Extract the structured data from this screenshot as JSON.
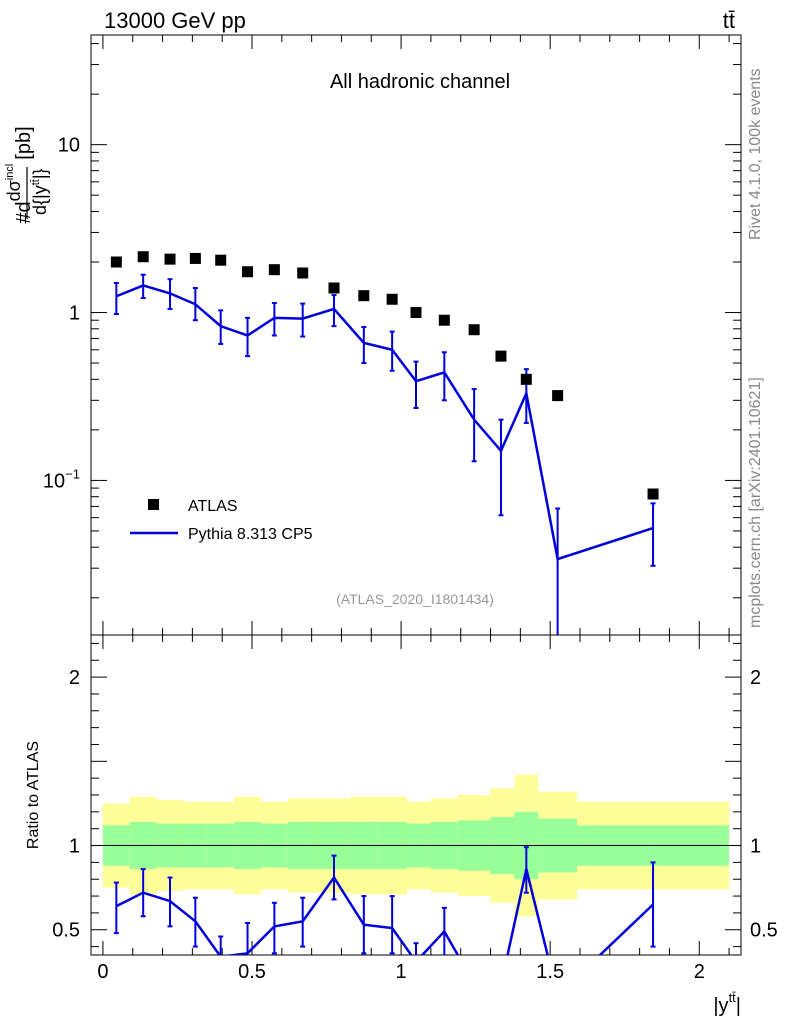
{
  "header": {
    "energy_label": "13000 GeV pp",
    "process_label": "tt̄"
  },
  "side_labels": {
    "rivet": "Rivet 4.1.0,  100k events",
    "source": "mcplots.cern.ch [arXiv:2401.10621]"
  },
  "colors": {
    "data": "#000000",
    "mc": "#0000dd",
    "band_inner": "#99ff99",
    "band_outer": "#ffff99"
  },
  "chart_data": [
    {
      "type": "scatter",
      "panel": "main",
      "title": "All hadronic channel",
      "ylabel": "#d dσ^{incl} / d{|y^{tt̄}|} [pb]",
      "ylabel_parts": {
        "prefix": "#d",
        "numerator": "dσ",
        "numerator_sup": "incl",
        "denominator": "d{|y",
        "denominator_sup": "tt̄",
        "denominator_tail": "|}",
        "unit": "[pb]"
      },
      "yscale": "log",
      "ylim": [
        0.012,
        45
      ],
      "xlim": [
        -0.04,
        2.14
      ],
      "y_ticks": [
        {
          "value": 0.1,
          "label_base": "10",
          "label_exp": "−1"
        },
        {
          "value": 1,
          "label_base": "1",
          "label_exp": ""
        },
        {
          "value": 10,
          "label_base": "10",
          "label_exp": ""
        }
      ],
      "watermark": "(ATLAS_2020_I1801434)",
      "legend": {
        "placement": "bottom-left",
        "entries": [
          {
            "label": "ATLAS",
            "marker": "square"
          },
          {
            "label": "Pythia 8.313 CP5",
            "marker": "line"
          }
        ]
      },
      "series": [
        {
          "name": "ATLAS",
          "style": "markers",
          "x": [
            0.045,
            0.135,
            0.225,
            0.31,
            0.395,
            0.485,
            0.575,
            0.67,
            0.775,
            0.875,
            0.97,
            1.05,
            1.145,
            1.245,
            1.335,
            1.42,
            1.525,
            1.845
          ],
          "y": [
            2.0,
            2.15,
            2.08,
            2.1,
            2.05,
            1.75,
            1.8,
            1.72,
            1.4,
            1.26,
            1.2,
            1.0,
            0.9,
            0.79,
            0.55,
            0.4,
            0.32,
            0.083
          ]
        },
        {
          "name": "Pythia 8.313 CP5",
          "style": "line",
          "x": [
            0.045,
            0.135,
            0.225,
            0.31,
            0.395,
            0.485,
            0.575,
            0.67,
            0.775,
            0.875,
            0.97,
            1.05,
            1.145,
            1.245,
            1.335,
            1.42,
            1.525,
            1.845
          ],
          "y": [
            1.25,
            1.45,
            1.3,
            1.12,
            0.83,
            0.73,
            0.93,
            0.92,
            1.05,
            0.66,
            0.6,
            0.39,
            0.44,
            0.23,
            0.15,
            0.33,
            0.034,
            0.052
          ],
          "y_low": [
            0.98,
            1.22,
            1.05,
            0.9,
            0.65,
            0.55,
            0.73,
            0.72,
            0.83,
            0.5,
            0.45,
            0.27,
            0.3,
            0.13,
            0.062,
            0.22,
            0.012,
            0.031
          ],
          "y_high": [
            1.5,
            1.68,
            1.58,
            1.4,
            1.03,
            0.93,
            1.14,
            1.13,
            1.27,
            0.82,
            0.77,
            0.51,
            0.58,
            0.35,
            0.23,
            0.46,
            0.068,
            0.073
          ]
        }
      ]
    },
    {
      "type": "line",
      "panel": "ratio",
      "ylabel": "Ratio to ATLAS",
      "xlabel": "|y^{tt̄}|",
      "xlabel_parts": {
        "base": "|y",
        "sup": "tt̄",
        "tail": "|"
      },
      "ylim": [
        0.35,
        2.25
      ],
      "xlim": [
        -0.04,
        2.14
      ],
      "x_ticks": [
        {
          "value": 0,
          "label": "0"
        },
        {
          "value": 0.5,
          "label": "0.5"
        },
        {
          "value": 1,
          "label": "1"
        },
        {
          "value": 1.5,
          "label": "1.5"
        },
        {
          "value": 2,
          "label": "2"
        }
      ],
      "y_ticks": [
        {
          "value": 0.5,
          "label": "0.5"
        },
        {
          "value": 1,
          "label": "1"
        },
        {
          "value": 2,
          "label": "2"
        }
      ],
      "reference_line": 1,
      "bands": {
        "edges": [
          0.0,
          0.09,
          0.18,
          0.27,
          0.35,
          0.44,
          0.53,
          0.62,
          0.72,
          0.83,
          0.92,
          1.02,
          1.1,
          1.19,
          1.3,
          1.38,
          1.46,
          1.59,
          2.1
        ],
        "inner_low": [
          0.88,
          0.86,
          0.87,
          0.87,
          0.87,
          0.86,
          0.87,
          0.86,
          0.86,
          0.86,
          0.86,
          0.87,
          0.86,
          0.85,
          0.83,
          0.8,
          0.84,
          0.88
        ],
        "inner_high": [
          1.12,
          1.14,
          1.13,
          1.13,
          1.13,
          1.14,
          1.13,
          1.14,
          1.14,
          1.14,
          1.14,
          1.13,
          1.14,
          1.15,
          1.17,
          1.2,
          1.16,
          1.12
        ],
        "outer_low": [
          0.75,
          0.71,
          0.73,
          0.74,
          0.74,
          0.71,
          0.74,
          0.72,
          0.72,
          0.71,
          0.71,
          0.74,
          0.72,
          0.7,
          0.66,
          0.58,
          0.68,
          0.74
        ],
        "outer_high": [
          1.25,
          1.29,
          1.27,
          1.26,
          1.26,
          1.29,
          1.26,
          1.28,
          1.28,
          1.29,
          1.29,
          1.26,
          1.28,
          1.3,
          1.34,
          1.42,
          1.32,
          1.26
        ]
      },
      "series": [
        {
          "name": "Pythia 8.313 CP5 / ATLAS",
          "x": [
            0.045,
            0.135,
            0.225,
            0.31,
            0.395,
            0.485,
            0.575,
            0.67,
            0.775,
            0.875,
            0.97,
            1.05,
            1.145,
            1.245,
            1.335,
            1.42,
            1.525,
            1.845
          ],
          "y": [
            0.64,
            0.72,
            0.67,
            0.55,
            0.34,
            0.36,
            0.52,
            0.55,
            0.81,
            0.53,
            0.51,
            0.31,
            0.49,
            0.18,
            0.17,
            0.86,
            0.11,
            0.65
          ],
          "y_low": [
            0.48,
            0.58,
            0.52,
            0.4,
            0.25,
            0.25,
            0.36,
            0.4,
            0.68,
            0.36,
            0.36,
            0.22,
            0.34,
            0.1,
            0.08,
            0.72,
            0.04,
            0.4
          ],
          "y_high": [
            0.78,
            0.86,
            0.81,
            0.69,
            0.46,
            0.54,
            0.66,
            0.69,
            0.94,
            0.7,
            0.7,
            0.42,
            0.63,
            0.31,
            0.3,
            0.99,
            0.2,
            0.9
          ]
        }
      ]
    }
  ]
}
